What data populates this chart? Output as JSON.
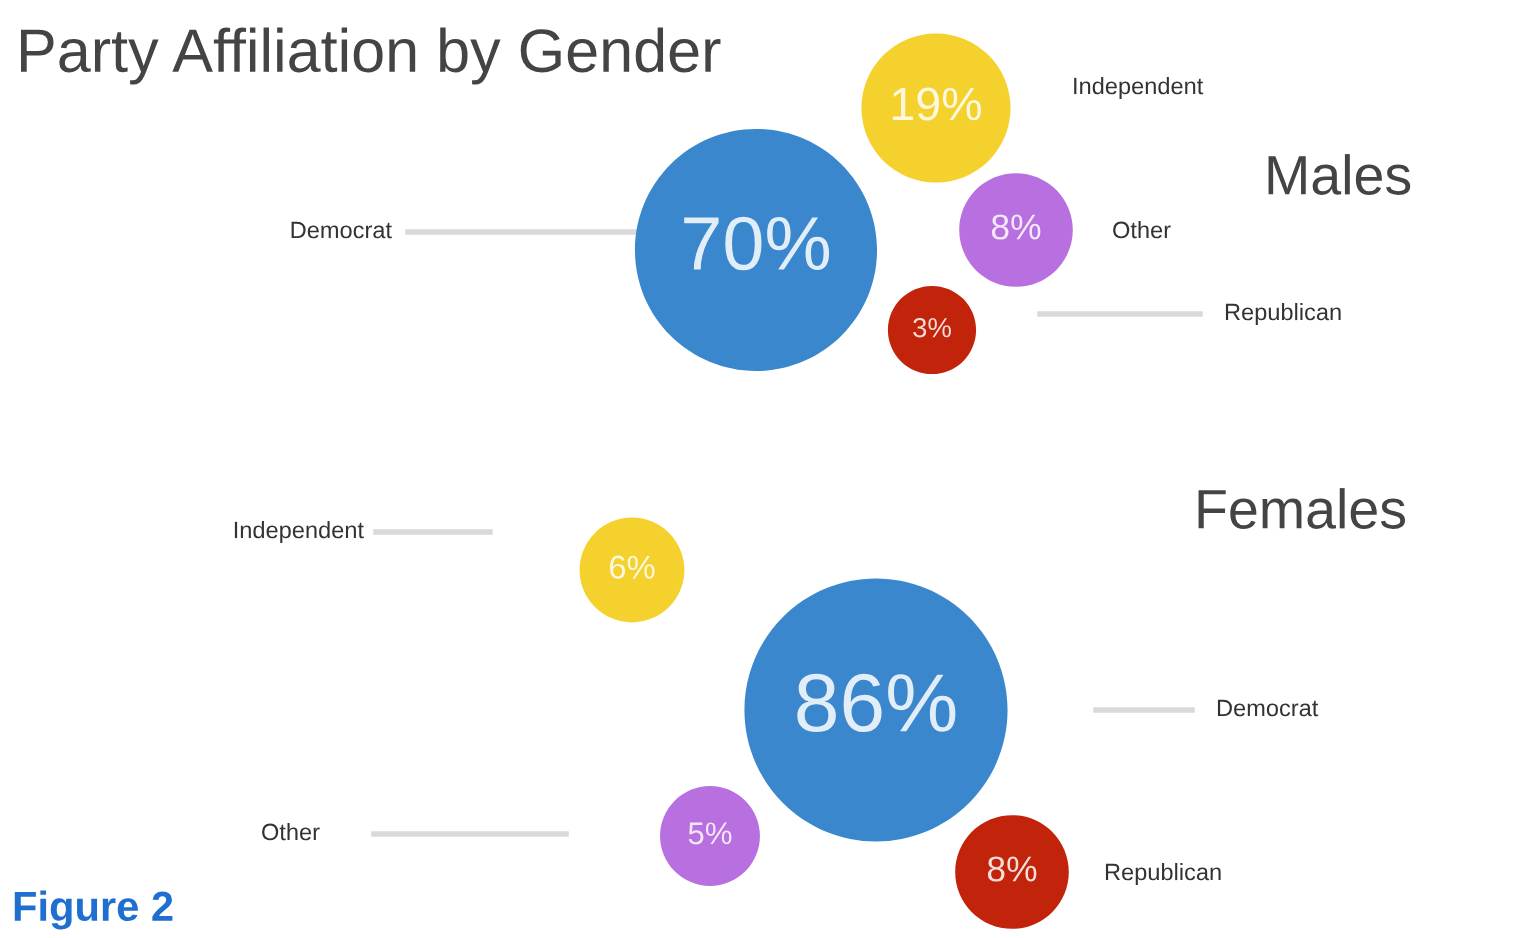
{
  "chart_data": [
    {
      "type": "other",
      "title": "Party Affiliation by Gender",
      "subtitle": "Males",
      "categories": [
        "Democrat",
        "Independent",
        "Other",
        "Republican"
      ],
      "values": [
        70,
        19,
        8,
        3
      ],
      "value_labels": [
        "70%",
        "19%",
        "8%",
        "3%"
      ],
      "colors": [
        "#3a87cd",
        "#f5d12e",
        "#b86fe0",
        "#c1240b"
      ]
    },
    {
      "type": "other",
      "subtitle": "Females",
      "categories": [
        "Independent",
        "Democrat",
        "Other",
        "Republican"
      ],
      "values": [
        6,
        86,
        5,
        8
      ],
      "value_labels": [
        "6%",
        "86%",
        "5%",
        "8%"
      ],
      "colors": [
        "#f5d12e",
        "#3a87cd",
        "#b86fe0",
        "#c1240b"
      ],
      "annotations": [
        "Figure 2"
      ]
    }
  ]
}
